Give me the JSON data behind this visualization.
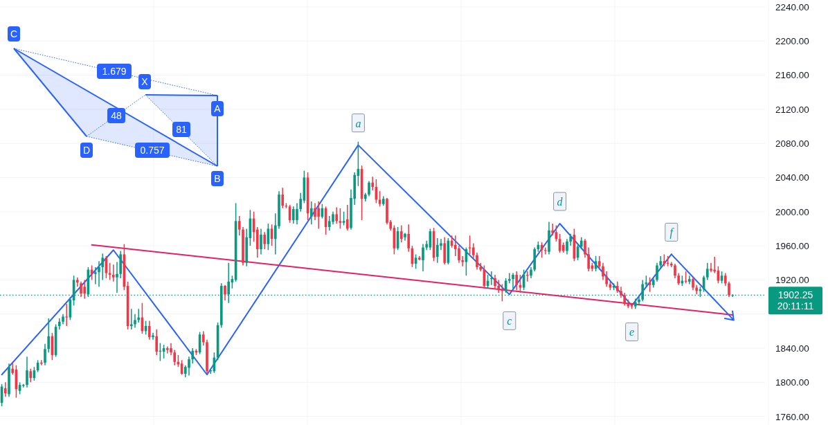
{
  "chart_data": {
    "type": "candlestick",
    "categories": [
      null,
      null,
      null,
      null,
      null,
      null,
      null,
      null,
      null,
      null,
      null,
      null,
      null,
      null,
      null,
      null,
      null,
      null,
      null,
      null,
      null,
      null,
      null,
      null,
      null,
      null,
      null,
      null,
      null,
      null,
      null,
      null,
      null,
      null,
      null,
      null,
      null,
      null,
      null,
      null,
      null,
      null,
      null,
      null,
      null,
      null,
      null,
      null,
      null,
      null,
      null,
      null,
      null,
      null,
      null,
      null,
      null,
      null,
      null,
      null,
      null,
      null,
      null,
      null,
      null,
      null,
      null,
      null,
      null,
      null,
      null,
      null,
      null,
      null,
      null,
      null,
      null,
      null,
      null,
      null,
      null,
      null,
      null,
      null,
      null,
      null,
      null,
      null,
      null,
      null,
      null,
      null,
      null,
      null,
      null,
      null,
      null,
      null,
      null,
      null,
      null,
      null,
      null,
      null,
      null,
      null,
      null,
      null,
      null,
      null,
      null,
      null,
      null,
      null,
      null,
      null,
      null,
      null,
      null,
      null,
      null,
      null,
      null,
      null,
      null,
      null,
      null,
      null,
      null,
      null,
      null,
      null,
      null,
      null,
      null,
      null,
      null,
      null,
      null,
      null,
      null,
      null,
      null,
      null,
      null,
      null,
      null,
      null,
      null,
      null,
      null,
      null,
      null,
      null,
      null,
      null,
      null,
      null,
      null,
      null,
      null,
      null,
      null,
      null,
      null,
      null,
      null,
      null,
      null,
      null,
      null,
      null,
      null,
      null,
      null,
      null,
      null,
      null,
      null,
      null,
      null,
      null,
      null,
      null,
      null,
      null,
      null,
      null,
      null,
      null,
      null,
      null,
      null,
      null,
      null,
      null,
      null,
      null,
      null,
      null,
      null,
      null,
      null,
      null
    ],
    "ohlc": [
      [
        1776,
        1798,
        1772,
        1795
      ],
      [
        1793,
        1800,
        1783,
        1787
      ],
      [
        1786,
        1822,
        1783,
        1818
      ],
      [
        1816,
        1824,
        1809,
        1811
      ],
      [
        1815,
        1820,
        1782,
        1792
      ],
      [
        1790,
        1800,
        1786,
        1797
      ],
      [
        1796,
        1798,
        1794,
        1797
      ],
      [
        1797,
        1830,
        1794,
        1814
      ],
      [
        1813,
        1816,
        1800,
        1805
      ],
      [
        1805,
        1818,
        1802,
        1814
      ],
      [
        1814,
        1826,
        1812,
        1823
      ],
      [
        1823,
        1826,
        1820,
        1822
      ],
      [
        1823,
        1845,
        1820,
        1839
      ],
      [
        1839,
        1875,
        1835,
        1854
      ],
      [
        1854,
        1858,
        1826,
        1832
      ],
      [
        1832,
        1868,
        1830,
        1865
      ],
      [
        1866,
        1875,
        1862,
        1871
      ],
      [
        1871,
        1880,
        1868,
        1877
      ],
      [
        1877,
        1892,
        1866,
        1876
      ],
      [
        1876,
        1900,
        1873,
        1897
      ],
      [
        1896,
        1925,
        1890,
        1920
      ],
      [
        1920,
        1923,
        1912,
        1917
      ],
      [
        1916,
        1918,
        1900,
        1904
      ],
      [
        1912,
        1920,
        1898,
        1904
      ],
      [
        1903,
        1935,
        1900,
        1932
      ],
      [
        1932,
        1937,
        1920,
        1927
      ],
      [
        1927,
        1935,
        1915,
        1929
      ],
      [
        1929,
        1942,
        1912,
        1935
      ],
      [
        1935,
        1951,
        1920,
        1946
      ],
      [
        1946,
        1948,
        1922,
        1928
      ],
      [
        1928,
        1940,
        1920,
        1926
      ],
      [
        1926,
        1938,
        1918,
        1923
      ],
      [
        1923,
        1941,
        1905,
        1927
      ],
      [
        1927,
        1954,
        1922,
        1950
      ],
      [
        1950,
        1962,
        1908,
        1912
      ],
      [
        1913,
        1918,
        1862,
        1866
      ],
      [
        1866,
        1886,
        1862,
        1868
      ],
      [
        1868,
        1880,
        1864,
        1873
      ],
      [
        1873,
        1886,
        1870,
        1876
      ],
      [
        1876,
        1893,
        1857,
        1860
      ],
      [
        1860,
        1872,
        1856,
        1866
      ],
      [
        1866,
        1872,
        1850,
        1853
      ],
      [
        1853,
        1858,
        1850,
        1855
      ],
      [
        1854,
        1862,
        1832,
        1836
      ],
      [
        1836,
        1846,
        1825,
        1837
      ],
      [
        1836,
        1844,
        1828,
        1840
      ],
      [
        1840,
        1842,
        1834,
        1838
      ],
      [
        1840,
        1846,
        1832,
        1835
      ],
      [
        1835,
        1838,
        1820,
        1824
      ],
      [
        1824,
        1832,
        1818,
        1821
      ],
      [
        1822,
        1826,
        1809,
        1810
      ],
      [
        1810,
        1820,
        1806,
        1818
      ],
      [
        1817,
        1830,
        1808,
        1827
      ],
      [
        1827,
        1840,
        1822,
        1837
      ],
      [
        1837,
        1839,
        1832,
        1835
      ],
      [
        1835,
        1859,
        1833,
        1856
      ],
      [
        1856,
        1860,
        1843,
        1847
      ],
      [
        1847,
        1850,
        1810,
        1813
      ],
      [
        1813,
        1816,
        1810,
        1814
      ],
      [
        1813,
        1835,
        1811,
        1829
      ],
      [
        1829,
        1870,
        1826,
        1867
      ],
      [
        1867,
        1916,
        1864,
        1913
      ],
      [
        1913,
        1914,
        1896,
        1903
      ],
      [
        1903,
        1940,
        1893,
        1918
      ],
      [
        1917,
        1925,
        1910,
        1921
      ],
      [
        1920,
        2010,
        1918,
        1989
      ],
      [
        1989,
        1995,
        1972,
        1979
      ],
      [
        1979,
        1982,
        1937,
        1940
      ],
      [
        1940,
        1980,
        1936,
        1970
      ],
      [
        1969,
        2002,
        1960,
        1992
      ],
      [
        1992,
        2000,
        1965,
        1976
      ],
      [
        1979,
        1982,
        1946,
        1956
      ],
      [
        1956,
        1980,
        1950,
        1973
      ],
      [
        1973,
        1976,
        1956,
        1962
      ],
      [
        1962,
        1986,
        1955,
        1980
      ],
      [
        1980,
        1985,
        1960,
        1968
      ],
      [
        1968,
        1998,
        1950,
        1984
      ],
      [
        1983,
        2024,
        1980,
        2020
      ],
      [
        2020,
        2028,
        2004,
        2007
      ],
      [
        2007,
        2010,
        2004,
        2006
      ],
      [
        2006,
        2008,
        1987,
        1990
      ],
      [
        1990,
        2006,
        1986,
        2003
      ],
      [
        1990,
        2010,
        1985,
        2003
      ],
      [
        2003,
        2022,
        2000,
        2015
      ],
      [
        2013,
        2048,
        2010,
        2040
      ],
      [
        2040,
        2046,
        1990,
        1998
      ],
      [
        1994,
        2012,
        1985,
        2004
      ],
      [
        2004,
        2010,
        1990,
        1994
      ],
      [
        2004,
        2012,
        1980,
        1994
      ],
      [
        1994,
        2009,
        1992,
        2004
      ],
      [
        2004,
        2006,
        1973,
        1982
      ],
      [
        1982,
        1995,
        1978,
        1989
      ],
      [
        1988,
        2000,
        1985,
        1997
      ],
      [
        1997,
        2005,
        1986,
        1989
      ],
      [
        1989,
        2004,
        1980,
        1987
      ],
      [
        1987,
        2000,
        1984,
        1989
      ],
      [
        1991,
        2008,
        1978,
        1980
      ],
      [
        1981,
        2026,
        1979,
        2016
      ],
      [
        2015,
        2046,
        2008,
        2043
      ],
      [
        2042,
        2082,
        2030,
        2050
      ],
      [
        2050,
        2054,
        1990,
        2015
      ],
      [
        2015,
        2022,
        2012,
        2020
      ],
      [
        2020,
        2036,
        2018,
        2034
      ],
      [
        2034,
        2041,
        2025,
        2029
      ],
      [
        2029,
        2038,
        2010,
        2014
      ],
      [
        2014,
        2024,
        2006,
        2009
      ],
      [
        2009,
        2018,
        2007,
        2015
      ],
      [
        2015,
        2016,
        1985,
        1987
      ],
      [
        1988,
        1990,
        1978,
        1980
      ],
      [
        1981,
        1984,
        1950,
        1957
      ],
      [
        1957,
        1982,
        1955,
        1977
      ],
      [
        1977,
        1984,
        1964,
        1968
      ],
      [
        1970,
        1975,
        1966,
        1974
      ],
      [
        1974,
        1985,
        1953,
        1957
      ],
      [
        1957,
        1960,
        1935,
        1939
      ],
      [
        1939,
        1950,
        1933,
        1946
      ],
      [
        1946,
        1948,
        1943,
        1944
      ],
      [
        1943,
        1962,
        1930,
        1958
      ],
      [
        1958,
        1966,
        1955,
        1962
      ],
      [
        1958,
        1980,
        1955,
        1977
      ],
      [
        1977,
        1981,
        1942,
        1946
      ],
      [
        1947,
        1969,
        1940,
        1961
      ],
      [
        1960,
        1968,
        1955,
        1963
      ],
      [
        1963,
        1970,
        1938,
        1940
      ],
      [
        1940,
        1969,
        1938,
        1966
      ],
      [
        1966,
        1972,
        1958,
        1960
      ],
      [
        1961,
        1972,
        1948,
        1956
      ],
      [
        1957,
        1960,
        1940,
        1943
      ],
      [
        1943,
        1948,
        1936,
        1941
      ],
      [
        1941,
        1958,
        1925,
        1956
      ],
      [
        1958,
        1972,
        1950,
        1957
      ],
      [
        1958,
        1963,
        1945,
        1949
      ],
      [
        1949,
        1952,
        1932,
        1935
      ],
      [
        1935,
        1940,
        1930,
        1932
      ],
      [
        1932,
        1937,
        1910,
        1913
      ],
      [
        1913,
        1926,
        1910,
        1919
      ],
      [
        1921,
        1930,
        1914,
        1922
      ],
      [
        1922,
        1926,
        1910,
        1913
      ],
      [
        1913,
        1920,
        1905,
        1908
      ],
      [
        1908,
        1915,
        1895,
        1907
      ],
      [
        1907,
        1922,
        1905,
        1919
      ],
      [
        1919,
        1928,
        1916,
        1921
      ],
      [
        1921,
        1928,
        1910,
        1926
      ],
      [
        1926,
        1930,
        1908,
        1914
      ],
      [
        1914,
        1926,
        1905,
        1911
      ],
      [
        1911,
        1932,
        1908,
        1926
      ],
      [
        1926,
        1930,
        1918,
        1925
      ],
      [
        1925,
        1935,
        1922,
        1932
      ],
      [
        1932,
        1958,
        1930,
        1956
      ],
      [
        1956,
        1965,
        1953,
        1961
      ],
      [
        1961,
        1964,
        1946,
        1955
      ],
      [
        1955,
        1958,
        1950,
        1954
      ],
      [
        1953,
        1988,
        1950,
        1978
      ],
      [
        1978,
        1986,
        1972,
        1975
      ],
      [
        1976,
        1984,
        1965,
        1968
      ],
      [
        1968,
        1974,
        1952,
        1954
      ],
      [
        1961,
        1964,
        1952,
        1954
      ],
      [
        1954,
        1968,
        1950,
        1965
      ],
      [
        1965,
        1974,
        1960,
        1971
      ],
      [
        1973,
        1980,
        1942,
        1945
      ],
      [
        1946,
        1962,
        1943,
        1959
      ],
      [
        1959,
        1970,
        1956,
        1966
      ],
      [
        1966,
        1968,
        1946,
        1950
      ],
      [
        1950,
        1958,
        1930,
        1933
      ],
      [
        1937,
        1940,
        1930,
        1933
      ],
      [
        1933,
        1948,
        1930,
        1942
      ],
      [
        1942,
        1948,
        1932,
        1936
      ],
      [
        1936,
        1940,
        1920,
        1924
      ],
      [
        1924,
        1930,
        1912,
        1915
      ],
      [
        1915,
        1918,
        1908,
        1911
      ],
      [
        1911,
        1916,
        1908,
        1913
      ],
      [
        1913,
        1918,
        1905,
        1907
      ],
      [
        1907,
        1912,
        1899,
        1902
      ],
      [
        1902,
        1905,
        1890,
        1892
      ],
      [
        1892,
        1897,
        1887,
        1889
      ],
      [
        1890,
        1893,
        1886,
        1889
      ],
      [
        1889,
        1898,
        1886,
        1894
      ],
      [
        1894,
        1900,
        1890,
        1897
      ],
      [
        1897,
        1920,
        1895,
        1915
      ],
      [
        1915,
        1925,
        1912,
        1917
      ],
      [
        1917,
        1923,
        1906,
        1914
      ],
      [
        1914,
        1923,
        1911,
        1920
      ],
      [
        1920,
        1940,
        1918,
        1937
      ],
      [
        1937,
        1948,
        1934,
        1942
      ],
      [
        1942,
        1950,
        1936,
        1939
      ],
      [
        1940,
        1948,
        1936,
        1939
      ],
      [
        1939,
        1941,
        1935,
        1937
      ],
      [
        1937,
        1939,
        1922,
        1925
      ],
      [
        1925,
        1928,
        1914,
        1916
      ],
      [
        1916,
        1925,
        1913,
        1919
      ],
      [
        1919,
        1930,
        1916,
        1918
      ],
      [
        1918,
        1925,
        1915,
        1921
      ],
      [
        1921,
        1924,
        1908,
        1911
      ],
      [
        1911,
        1914,
        1903,
        1907
      ],
      [
        1907,
        1912,
        1900,
        1909
      ],
      [
        1909,
        1925,
        1906,
        1923
      ],
      [
        1923,
        1940,
        1920,
        1933
      ],
      [
        1933,
        1940,
        1929,
        1931
      ],
      [
        1932,
        1947,
        1928,
        1930
      ],
      [
        1931,
        1936,
        1916,
        1919
      ],
      [
        1919,
        1930,
        1916,
        1925
      ],
      [
        1925,
        1928,
        1913,
        1916
      ],
      [
        1916,
        1918,
        1900,
        1902
      ],
      [
        1901.5,
        1903,
        1900,
        1902.25
      ]
    ],
    "series": [
      {
        "type": "line",
        "color": "#2962ff",
        "values": [
          1809,
          null,
          null,
          null,
          null,
          null,
          null,
          null,
          null,
          null,
          null,
          null,
          null,
          null,
          null,
          null,
          null,
          null,
          null,
          null,
          null,
          null,
          null,
          null,
          null,
          null,
          null,
          null,
          null,
          null,
          null,
          1955,
          null,
          null,
          null,
          null,
          null,
          null,
          null,
          null,
          null,
          null,
          null,
          null,
          null,
          null,
          null,
          null,
          null,
          null,
          null,
          null,
          null,
          null,
          null,
          null,
          null,
          1809,
          null,
          null,
          null,
          null,
          null,
          null,
          null,
          null,
          null,
          null,
          null,
          null,
          null,
          null,
          null,
          null,
          null,
          null,
          null,
          null,
          null,
          null,
          null,
          null,
          null,
          null,
          null,
          null,
          null,
          null,
          null,
          null,
          null,
          null,
          null,
          null,
          null,
          null,
          null,
          null,
          null,
          2078,
          null,
          null,
          null,
          null,
          null,
          null,
          null,
          null,
          null,
          null,
          null,
          null,
          null,
          null,
          null,
          null,
          null,
          null,
          null,
          null,
          null,
          null,
          null,
          null,
          null,
          null,
          null,
          null,
          null,
          null,
          null,
          null,
          null,
          null,
          null,
          null,
          null,
          null,
          null,
          null,
          null,
          1903,
          null,
          null,
          null,
          null,
          null,
          null,
          null,
          null,
          null,
          null,
          null,
          null,
          null,
          1986,
          null,
          null,
          null,
          null,
          null,
          null,
          null,
          null,
          null,
          null,
          null,
          null,
          null,
          null,
          null,
          null,
          null,
          null,
          null,
          1890,
          null,
          null,
          null,
          null,
          null,
          null,
          null,
          null,
          null,
          null,
          1950,
          null,
          null,
          null,
          null,
          null,
          null,
          null,
          null,
          null,
          null,
          null,
          null,
          null,
          null,
          null,
          null,
          null
        ]
      },
      {
        "type": "line",
        "color": "#e91e63",
        "values": [
          null,
          null,
          null,
          null,
          null,
          null,
          null,
          null,
          null,
          null,
          null,
          null,
          null,
          null,
          null,
          null,
          null,
          null,
          null,
          null,
          null,
          null,
          null,
          null,
          null,
          1961,
          null,
          null,
          null,
          null,
          null,
          null,
          null,
          null,
          null,
          null,
          null,
          null,
          null,
          null,
          null,
          null,
          null,
          null,
          null,
          null,
          null,
          null,
          null,
          null,
          null,
          null,
          null,
          null,
          null,
          null,
          null,
          null,
          null,
          null,
          null,
          null,
          null,
          null,
          null,
          null,
          null,
          null,
          null,
          null,
          null,
          null,
          null,
          null,
          null,
          null,
          null,
          null,
          null,
          null,
          null,
          null,
          null,
          null,
          null,
          null,
          null,
          null,
          null,
          null,
          null,
          null,
          null,
          null,
          null,
          null,
          null,
          null,
          null,
          null,
          null,
          null,
          null,
          null,
          null,
          null,
          null,
          null,
          null,
          null,
          null,
          null,
          null,
          null,
          null,
          null,
          null,
          null,
          null,
          null,
          null,
          null,
          null,
          null,
          null,
          null,
          null,
          null,
          null,
          null,
          null,
          null,
          null,
          null,
          null,
          null,
          null,
          null,
          null,
          null,
          null,
          null,
          null,
          null,
          null,
          null,
          null,
          null,
          null,
          null,
          null,
          null,
          null,
          null,
          null,
          null,
          null,
          null,
          null,
          null,
          null,
          null,
          null,
          null,
          null,
          null,
          null,
          null,
          null,
          null,
          null,
          null,
          null,
          null,
          null,
          null,
          null,
          null,
          null,
          null,
          null,
          null,
          null,
          null,
          null,
          null,
          null,
          null,
          null,
          null,
          null,
          null,
          null,
          null,
          null,
          null,
          null,
          null,
          null,
          null,
          null,
          null,
          null,
          1879
        ]
      }
    ],
    "ylim": [
      1750,
      2248
    ],
    "yticks": [
      {
        "value": 1760,
        "label": "1760.00"
      },
      {
        "value": 1800,
        "label": "1800.00"
      },
      {
        "value": 1840,
        "label": "1840.00"
      },
      {
        "value": 1880,
        "label": null
      },
      {
        "value": 1920,
        "label": "1920.00"
      },
      {
        "value": 1960,
        "label": "1960.00"
      },
      {
        "value": 2000,
        "label": "2000.00"
      },
      {
        "value": 2040,
        "label": "2040.00"
      },
      {
        "value": 2080,
        "label": "2080.00"
      },
      {
        "value": 2120,
        "label": "2120.00"
      },
      {
        "value": 2160,
        "label": "2160.00"
      },
      {
        "value": 2200,
        "label": "2200.00"
      },
      {
        "value": 2240,
        "label": "2240.00"
      }
    ],
    "tick_labels": "y",
    "grid": true,
    "ref_lines": [
      {
        "axis": "y",
        "value": 1902.25,
        "label": "1902.25",
        "color": "#089981",
        "line_style": "dotted"
      }
    ],
    "annotations": [
      "X",
      "A",
      "B",
      "C",
      "D",
      "1.679",
      "48",
      "81",
      "0.757",
      "20:11:11",
      {
        "text": "a",
        "y": 2078
      },
      {
        "text": "c",
        "y": 1903
      },
      {
        "text": "d",
        "y": 1986
      },
      {
        "text": "e",
        "y": 1890
      },
      {
        "text": "f",
        "y": 1950
      }
    ]
  }
}
